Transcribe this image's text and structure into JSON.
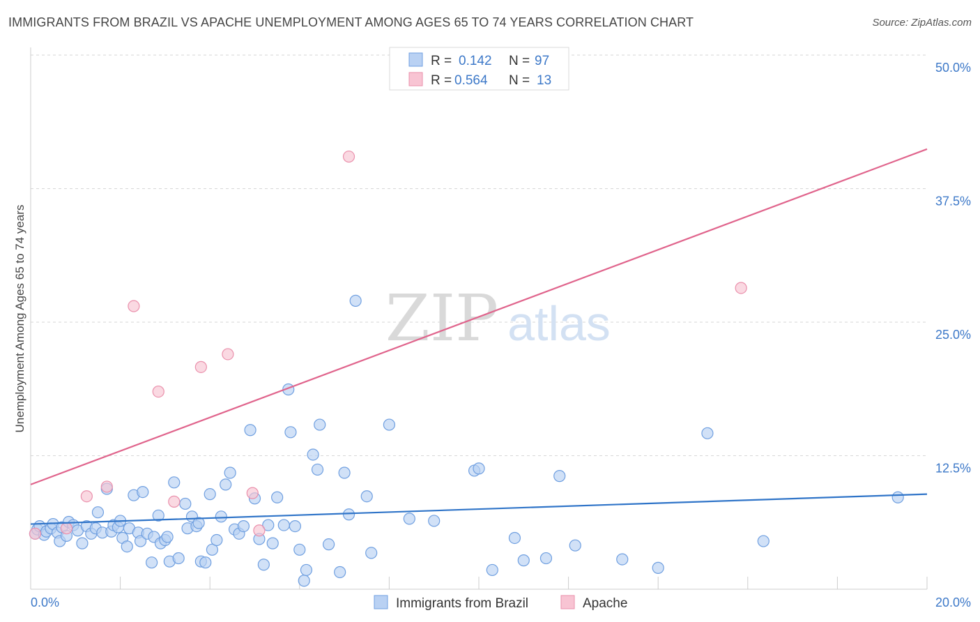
{
  "header": {
    "title": "IMMIGRANTS FROM BRAZIL VS APACHE UNEMPLOYMENT AMONG AGES 65 TO 74 YEARS CORRELATION CHART",
    "source": "Source: ZipAtlas.com"
  },
  "watermark": {
    "zip": "ZIP",
    "atlas": "atlas"
  },
  "legend_top": [
    {
      "r_label": "R =",
      "r_value": "0.142",
      "n_label": "N =",
      "n_value": "97"
    },
    {
      "r_label": "R =",
      "r_value": "0.564",
      "n_label": "N =",
      "n_value": "13"
    }
  ],
  "legend_bottom": [
    "Immigrants from Brazil",
    "Apache"
  ],
  "colors": {
    "brazil_fill": "#b9d1f3",
    "brazil_stroke": "#6f9fe0",
    "brazil_line": "#2f74c8",
    "apache_fill": "#f8c4d3",
    "apache_stroke": "#ea8fab",
    "apache_line": "#e0648c",
    "tick_label": "#3c78c8",
    "grid": "#d6d6d6"
  },
  "chart_data": {
    "type": "scatter",
    "title": "IMMIGRANTS FROM BRAZIL VS APACHE UNEMPLOYMENT AMONG AGES 65 TO 74 YEARS CORRELATION CHART",
    "xlabel": "",
    "ylabel": "Unemployment Among Ages 65 to 74 years",
    "xlim": [
      0,
      20
    ],
    "ylim": [
      0,
      50
    ],
    "x_tick_labels": [
      "0.0%",
      "20.0%"
    ],
    "y_ticks": [
      12.5,
      25.0,
      37.5,
      50.0
    ],
    "y_tick_labels": [
      "12.5%",
      "25.0%",
      "37.5%",
      "50.0%"
    ],
    "grid": "horizontal dashed",
    "legend_placement": "top-center and bottom",
    "series": [
      {
        "name": "Immigrants from Brazil",
        "r": 0.142,
        "n": 97,
        "trend": {
          "x": [
            0,
            20
          ],
          "y": [
            6.1,
            8.9
          ]
        },
        "points": [
          {
            "x": 0.1,
            "y": 5.2
          },
          {
            "x": 0.15,
            "y": 5.6
          },
          {
            "x": 0.2,
            "y": 5.9
          },
          {
            "x": 0.3,
            "y": 5.1
          },
          {
            "x": 0.35,
            "y": 5.4
          },
          {
            "x": 0.45,
            "y": 5.7
          },
          {
            "x": 0.5,
            "y": 6.1
          },
          {
            "x": 0.6,
            "y": 5.3
          },
          {
            "x": 0.65,
            "y": 4.5
          },
          {
            "x": 0.7,
            "y": 5.8
          },
          {
            "x": 0.8,
            "y": 5.0
          },
          {
            "x": 0.85,
            "y": 6.3
          },
          {
            "x": 0.95,
            "y": 6.0
          },
          {
            "x": 1.05,
            "y": 5.5
          },
          {
            "x": 1.15,
            "y": 4.3
          },
          {
            "x": 1.25,
            "y": 5.9
          },
          {
            "x": 1.35,
            "y": 5.2
          },
          {
            "x": 1.45,
            "y": 5.7
          },
          {
            "x": 1.5,
            "y": 7.2
          },
          {
            "x": 1.6,
            "y": 5.3
          },
          {
            "x": 1.7,
            "y": 9.4
          },
          {
            "x": 1.8,
            "y": 5.4
          },
          {
            "x": 1.85,
            "y": 6.0
          },
          {
            "x": 1.95,
            "y": 5.8
          },
          {
            "x": 2.0,
            "y": 6.4
          },
          {
            "x": 2.05,
            "y": 4.8
          },
          {
            "x": 2.15,
            "y": 4.0
          },
          {
            "x": 2.2,
            "y": 5.7
          },
          {
            "x": 2.3,
            "y": 8.8
          },
          {
            "x": 2.4,
            "y": 5.3
          },
          {
            "x": 2.45,
            "y": 4.5
          },
          {
            "x": 2.5,
            "y": 9.1
          },
          {
            "x": 2.6,
            "y": 5.2
          },
          {
            "x": 2.7,
            "y": 2.5
          },
          {
            "x": 2.75,
            "y": 4.9
          },
          {
            "x": 2.85,
            "y": 6.9
          },
          {
            "x": 2.9,
            "y": 4.3
          },
          {
            "x": 3.0,
            "y": 4.6
          },
          {
            "x": 3.05,
            "y": 4.9
          },
          {
            "x": 3.1,
            "y": 2.6
          },
          {
            "x": 3.2,
            "y": 10.0
          },
          {
            "x": 3.3,
            "y": 2.9
          },
          {
            "x": 3.45,
            "y": 8.0
          },
          {
            "x": 3.5,
            "y": 5.7
          },
          {
            "x": 3.6,
            "y": 6.8
          },
          {
            "x": 3.7,
            "y": 5.9
          },
          {
            "x": 3.75,
            "y": 6.2
          },
          {
            "x": 3.8,
            "y": 2.6
          },
          {
            "x": 3.9,
            "y": 2.5
          },
          {
            "x": 4.0,
            "y": 8.9
          },
          {
            "x": 4.05,
            "y": 3.7
          },
          {
            "x": 4.15,
            "y": 4.6
          },
          {
            "x": 4.25,
            "y": 6.8
          },
          {
            "x": 4.35,
            "y": 9.8
          },
          {
            "x": 4.45,
            "y": 10.9
          },
          {
            "x": 4.55,
            "y": 5.6
          },
          {
            "x": 4.65,
            "y": 5.2
          },
          {
            "x": 4.75,
            "y": 5.9
          },
          {
            "x": 4.9,
            "y": 14.9
          },
          {
            "x": 5.0,
            "y": 8.5
          },
          {
            "x": 5.1,
            "y": 4.7
          },
          {
            "x": 5.2,
            "y": 2.3
          },
          {
            "x": 5.3,
            "y": 6.0
          },
          {
            "x": 5.4,
            "y": 4.3
          },
          {
            "x": 5.5,
            "y": 8.6
          },
          {
            "x": 5.65,
            "y": 6.0
          },
          {
            "x": 5.75,
            "y": 18.7
          },
          {
            "x": 5.8,
            "y": 14.7
          },
          {
            "x": 5.9,
            "y": 5.9
          },
          {
            "x": 6.0,
            "y": 3.7
          },
          {
            "x": 6.1,
            "y": 0.8
          },
          {
            "x": 6.15,
            "y": 1.8
          },
          {
            "x": 6.3,
            "y": 12.6
          },
          {
            "x": 6.4,
            "y": 11.2
          },
          {
            "x": 6.45,
            "y": 15.4
          },
          {
            "x": 6.65,
            "y": 4.2
          },
          {
            "x": 6.9,
            "y": 1.6
          },
          {
            "x": 7.0,
            "y": 10.9
          },
          {
            "x": 7.1,
            "y": 7.0
          },
          {
            "x": 7.25,
            "y": 27.0
          },
          {
            "x": 7.5,
            "y": 8.7
          },
          {
            "x": 7.6,
            "y": 3.4
          },
          {
            "x": 8.0,
            "y": 15.4
          },
          {
            "x": 8.45,
            "y": 6.6
          },
          {
            "x": 9.0,
            "y": 6.4
          },
          {
            "x": 9.9,
            "y": 11.1
          },
          {
            "x": 10.0,
            "y": 11.3
          },
          {
            "x": 10.3,
            "y": 1.8
          },
          {
            "x": 10.8,
            "y": 4.8
          },
          {
            "x": 11.0,
            "y": 2.7
          },
          {
            "x": 11.5,
            "y": 2.9
          },
          {
            "x": 11.8,
            "y": 10.6
          },
          {
            "x": 12.15,
            "y": 4.1
          },
          {
            "x": 13.2,
            "y": 2.8
          },
          {
            "x": 14.0,
            "y": 2.0
          },
          {
            "x": 15.1,
            "y": 14.6
          },
          {
            "x": 16.35,
            "y": 4.5
          },
          {
            "x": 19.35,
            "y": 8.6
          }
        ]
      },
      {
        "name": "Apache",
        "r": 0.564,
        "n": 13,
        "trend": {
          "x": [
            0,
            20
          ],
          "y": [
            9.8,
            41.2
          ]
        },
        "points": [
          {
            "x": 0.1,
            "y": 5.2
          },
          {
            "x": 0.8,
            "y": 5.7
          },
          {
            "x": 1.25,
            "y": 8.7
          },
          {
            "x": 1.7,
            "y": 9.6
          },
          {
            "x": 2.3,
            "y": 26.5
          },
          {
            "x": 2.85,
            "y": 18.5
          },
          {
            "x": 3.2,
            "y": 8.2
          },
          {
            "x": 3.8,
            "y": 20.8
          },
          {
            "x": 4.4,
            "y": 22.0
          },
          {
            "x": 4.95,
            "y": 9.0
          },
          {
            "x": 5.1,
            "y": 5.5
          },
          {
            "x": 7.1,
            "y": 40.5
          },
          {
            "x": 15.85,
            "y": 28.2
          }
        ]
      }
    ]
  }
}
